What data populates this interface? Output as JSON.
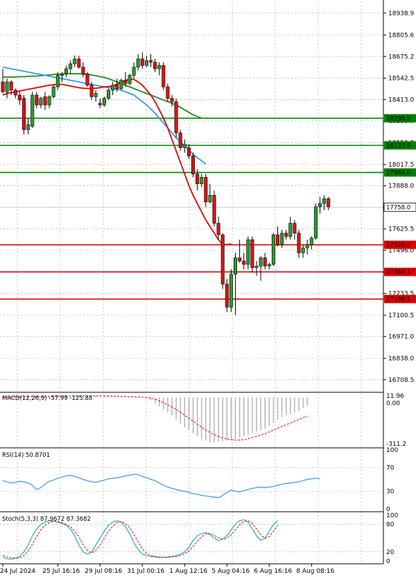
{
  "chart_data": {
    "type": "candlestick",
    "price_axis_ticks": [
      18938.9,
      18805.6,
      18675.2,
      18542.5,
      18413.0,
      18283.0,
      18150.0,
      18017.5,
      17888.0,
      17758.0,
      17625.5,
      17496.0,
      17363.0,
      17233.5,
      17100.5,
      16971.0,
      16838.0,
      16708.5
    ],
    "price_axis_range": [
      16640,
      19010
    ],
    "time_labels": [
      "24 Jul 2024",
      "25 Jul 16:16",
      "29 Jul 08:16",
      "31 Jul 00:16",
      "1 Aug 12:16",
      "5 Aug 04:16",
      "6 Aug 16:16",
      "8 Aug 08:16"
    ],
    "time_label_index": [
      0,
      13,
      23,
      33,
      43,
      53,
      63,
      73
    ],
    "candles": [
      {
        "o": 18520,
        "h": 18600,
        "l": 18450,
        "c": 18460
      },
      {
        "o": 18460,
        "h": 18540,
        "l": 18420,
        "c": 18520
      },
      {
        "o": 18520,
        "h": 18530,
        "l": 18440,
        "c": 18470
      },
      {
        "o": 18470,
        "h": 18480,
        "l": 18420,
        "c": 18440
      },
      {
        "o": 18440,
        "h": 18460,
        "l": 18380,
        "c": 18410
      },
      {
        "o": 18420,
        "h": 18440,
        "l": 18200,
        "c": 18230
      },
      {
        "o": 18230,
        "h": 18300,
        "l": 18200,
        "c": 18260
      },
      {
        "o": 18250,
        "h": 18460,
        "l": 18240,
        "c": 18440
      },
      {
        "o": 18440,
        "h": 18460,
        "l": 18360,
        "c": 18380
      },
      {
        "o": 18380,
        "h": 18430,
        "l": 18360,
        "c": 18420
      },
      {
        "o": 18430,
        "h": 18460,
        "l": 18350,
        "c": 18380
      },
      {
        "o": 18380,
        "h": 18440,
        "l": 18360,
        "c": 18430
      },
      {
        "o": 18430,
        "h": 18500,
        "l": 18420,
        "c": 18490
      },
      {
        "o": 18490,
        "h": 18580,
        "l": 18470,
        "c": 18560
      },
      {
        "o": 18560,
        "h": 18580,
        "l": 18520,
        "c": 18570
      },
      {
        "o": 18570,
        "h": 18620,
        "l": 18550,
        "c": 18600
      },
      {
        "o": 18600,
        "h": 18650,
        "l": 18570,
        "c": 18630
      },
      {
        "o": 18630,
        "h": 18680,
        "l": 18610,
        "c": 18660
      },
      {
        "o": 18660,
        "h": 18680,
        "l": 18600,
        "c": 18610
      },
      {
        "o": 18610,
        "h": 18640,
        "l": 18550,
        "c": 18570
      },
      {
        "o": 18570,
        "h": 18580,
        "l": 18490,
        "c": 18500
      },
      {
        "o": 18500,
        "h": 18520,
        "l": 18410,
        "c": 18430
      },
      {
        "o": 18430,
        "h": 18470,
        "l": 18400,
        "c": 18450
      },
      {
        "o": 18390,
        "h": 18420,
        "l": 18360,
        "c": 18380
      },
      {
        "o": 18380,
        "h": 18430,
        "l": 18370,
        "c": 18420
      },
      {
        "o": 18420,
        "h": 18480,
        "l": 18410,
        "c": 18470
      },
      {
        "o": 18470,
        "h": 18520,
        "l": 18440,
        "c": 18500
      },
      {
        "o": 18500,
        "h": 18540,
        "l": 18460,
        "c": 18480
      },
      {
        "o": 18480,
        "h": 18540,
        "l": 18470,
        "c": 18530
      },
      {
        "o": 18530,
        "h": 18580,
        "l": 18490,
        "c": 18510
      },
      {
        "o": 18510,
        "h": 18570,
        "l": 18500,
        "c": 18560
      },
      {
        "o": 18560,
        "h": 18640,
        "l": 18540,
        "c": 18610
      },
      {
        "o": 18610,
        "h": 18690,
        "l": 18590,
        "c": 18660
      },
      {
        "o": 18660,
        "h": 18700,
        "l": 18600,
        "c": 18620
      },
      {
        "o": 18620,
        "h": 18680,
        "l": 18610,
        "c": 18650
      },
      {
        "o": 18650,
        "h": 18690,
        "l": 18610,
        "c": 18640
      },
      {
        "o": 18640,
        "h": 18660,
        "l": 18580,
        "c": 18600
      },
      {
        "o": 18600,
        "h": 18640,
        "l": 18560,
        "c": 18620
      },
      {
        "o": 18620,
        "h": 18640,
        "l": 18470,
        "c": 18490
      },
      {
        "o": 18490,
        "h": 18510,
        "l": 18400,
        "c": 18420
      },
      {
        "o": 18420,
        "h": 18440,
        "l": 18370,
        "c": 18400
      },
      {
        "o": 18400,
        "h": 18420,
        "l": 18180,
        "c": 18210
      },
      {
        "o": 18210,
        "h": 18230,
        "l": 18100,
        "c": 18120
      },
      {
        "o": 18120,
        "h": 18170,
        "l": 18090,
        "c": 18140
      },
      {
        "o": 18120,
        "h": 18140,
        "l": 18050,
        "c": 18070
      },
      {
        "o": 18070,
        "h": 18090,
        "l": 17940,
        "c": 17960
      },
      {
        "o": 17960,
        "h": 17990,
        "l": 17860,
        "c": 17900
      },
      {
        "o": 17900,
        "h": 17960,
        "l": 17880,
        "c": 17940
      },
      {
        "o": 17940,
        "h": 17960,
        "l": 17760,
        "c": 17790
      },
      {
        "o": 17790,
        "h": 17900,
        "l": 17780,
        "c": 17830
      },
      {
        "o": 17830,
        "h": 17860,
        "l": 17640,
        "c": 17660
      },
      {
        "o": 17660,
        "h": 17700,
        "l": 17560,
        "c": 17590
      },
      {
        "o": 17590,
        "h": 17600,
        "l": 17260,
        "c": 17290
      },
      {
        "o": 17290,
        "h": 17320,
        "l": 17120,
        "c": 17150
      },
      {
        "o": 17150,
        "h": 17380,
        "l": 17120,
        "c": 17350
      },
      {
        "o": 17350,
        "h": 17480,
        "l": 17100,
        "c": 17450
      },
      {
        "o": 17450,
        "h": 17560,
        "l": 17420,
        "c": 17430
      },
      {
        "o": 17430,
        "h": 17480,
        "l": 17380,
        "c": 17410
      },
      {
        "o": 17410,
        "h": 17580,
        "l": 17380,
        "c": 17560
      },
      {
        "o": 17560,
        "h": 17580,
        "l": 17360,
        "c": 17390
      },
      {
        "o": 17390,
        "h": 17430,
        "l": 17340,
        "c": 17400
      },
      {
        "o": 17400,
        "h": 17460,
        "l": 17310,
        "c": 17450
      },
      {
        "o": 17450,
        "h": 17480,
        "l": 17380,
        "c": 17400
      },
      {
        "o": 17400,
        "h": 17420,
        "l": 17380,
        "c": 17410
      },
      {
        "o": 17410,
        "h": 17600,
        "l": 17400,
        "c": 17590
      },
      {
        "o": 17590,
        "h": 17640,
        "l": 17520,
        "c": 17530
      },
      {
        "o": 17530,
        "h": 17620,
        "l": 17510,
        "c": 17600
      },
      {
        "o": 17600,
        "h": 17620,
        "l": 17560,
        "c": 17580
      },
      {
        "o": 17580,
        "h": 17700,
        "l": 17560,
        "c": 17660
      },
      {
        "o": 17660,
        "h": 17680,
        "l": 17560,
        "c": 17600
      },
      {
        "o": 17600,
        "h": 17620,
        "l": 17450,
        "c": 17480
      },
      {
        "o": 17480,
        "h": 17530,
        "l": 17450,
        "c": 17510
      },
      {
        "o": 17510,
        "h": 17560,
        "l": 17470,
        "c": 17530
      },
      {
        "o": 17530,
        "h": 17580,
        "l": 17500,
        "c": 17570
      },
      {
        "o": 17570,
        "h": 17780,
        "l": 17560,
        "c": 17760
      },
      {
        "o": 17760,
        "h": 17820,
        "l": 17720,
        "c": 17780
      },
      {
        "o": 17780,
        "h": 17830,
        "l": 17740,
        "c": 17810
      },
      {
        "o": 17810,
        "h": 17820,
        "l": 17740,
        "c": 17760
      }
    ],
    "ma_red": [
      18440,
      18450,
      18455,
      18460,
      18465,
      18470,
      18475,
      18480,
      18485,
      18490,
      18495,
      18500,
      18502,
      18505,
      18505,
      18500,
      18495,
      18490,
      18485,
      18482,
      18480,
      18480,
      18482,
      18485,
      18490,
      18492,
      18495,
      18505,
      18515,
      18530,
      18535,
      18535,
      18520,
      18500,
      18470,
      18440,
      18400,
      18350,
      18300,
      18240,
      18170,
      18100,
      18030,
      17960,
      17890,
      17830,
      17780,
      17730,
      17680,
      17640,
      17600,
      17560,
      17530,
      17530,
      17535
    ],
    "ma_red_start": 0,
    "ma_blue": [
      18610,
      18605,
      18600,
      18595,
      18590,
      18585,
      18580,
      18575,
      18570,
      18565,
      18560,
      18555,
      18550,
      18545,
      18540,
      18535,
      18530,
      18525,
      18520,
      18515,
      18510,
      18505,
      18500,
      18495,
      18490,
      18485,
      18480,
      18475,
      18470,
      18460,
      18450,
      18440,
      18420,
      18400,
      18380,
      18355,
      18330,
      18300,
      18270,
      18240,
      18210,
      18180,
      18155,
      18130,
      18105,
      18080,
      18060,
      18040,
      18020
    ],
    "ma_blue_start": 0,
    "ma_green": [
      18550,
      18550,
      18550,
      18550,
      18552,
      18552,
      18554,
      18555,
      18556,
      18558,
      18560,
      18562,
      18565,
      18567,
      18568,
      18570,
      18570,
      18570,
      18570,
      18568,
      18565,
      18562,
      18558,
      18553,
      18548,
      18540,
      18530,
      18520,
      18510,
      18500,
      18490,
      18480,
      18470,
      18460,
      18450,
      18440,
      18430,
      18420,
      18410,
      18400,
      18390,
      18380,
      18365,
      18350,
      18335,
      18320,
      18310,
      18300
    ],
    "ma_green_start": 0,
    "hlines": [
      {
        "value": 18298.9,
        "label": "18298.9",
        "color": "#008000"
      },
      {
        "value": 18133.9,
        "label": "18133.9",
        "color": "#008000"
      },
      {
        "value": 17969.0,
        "label": "17969.0",
        "color": "#008000"
      },
      {
        "value": 17529.0,
        "label": "17529.0",
        "color": "#dd0000"
      },
      {
        "value": 17364.1,
        "label": "17364.1",
        "color": "#dd0000"
      },
      {
        "value": 17199.1,
        "label": "17199.1",
        "color": "#dd0000"
      }
    ],
    "current_price": {
      "value": 17758.0,
      "label": "17758.0"
    },
    "macd": {
      "label": "MACD(12,26,9) -57.99 -125.88",
      "ticks": [
        "11.96",
        "0.00",
        "-311.2"
      ],
      "range": [
        -330,
        30
      ],
      "bars": [
        2,
        3,
        4,
        5,
        5,
        6,
        6,
        7,
        7,
        8,
        8,
        9,
        9,
        10,
        10,
        11,
        11,
        11,
        12,
        12,
        12,
        11,
        11,
        10,
        9,
        8,
        7,
        6,
        5,
        4,
        3,
        2,
        1,
        0,
        -5,
        -20,
        -40,
        -60,
        -80,
        -100,
        -120,
        -150,
        -180,
        -200,
        -220,
        -240,
        -260,
        -280,
        -290,
        -300,
        -305,
        -300,
        -295,
        -290,
        -285,
        -280,
        -270,
        -260,
        -250,
        -240,
        -230,
        -220,
        -210,
        -190,
        -170,
        -150,
        -130,
        -120,
        -110,
        -100,
        -90,
        -70,
        -58
      ],
      "signal": [
        2,
        2,
        3,
        3,
        4,
        4,
        5,
        5,
        6,
        6,
        7,
        7,
        8,
        8,
        9,
        9,
        10,
        10,
        11,
        11,
        11,
        11,
        11,
        11,
        10,
        10,
        9,
        8,
        7,
        6,
        5,
        4,
        3,
        2,
        0,
        -5,
        -12,
        -22,
        -35,
        -50,
        -65,
        -80,
        -100,
        -120,
        -140,
        -160,
        -180,
        -200,
        -220,
        -235,
        -250,
        -262,
        -272,
        -280,
        -285,
        -287,
        -287,
        -284,
        -278,
        -270,
        -262,
        -254,
        -244,
        -232,
        -220,
        -208,
        -195,
        -184,
        -172,
        -160,
        -148,
        -136,
        -126
      ]
    },
    "rsi": {
      "label": "RSI(14) 50.8701",
      "ticks": [
        "100",
        "70",
        "30",
        "0"
      ],
      "range": [
        0,
        100
      ],
      "values": [
        48,
        46,
        44,
        45,
        47,
        46,
        44,
        40,
        33,
        36,
        42,
        47,
        49,
        52,
        54,
        56,
        57,
        55,
        53,
        50,
        48,
        46,
        45,
        47,
        49,
        51,
        52,
        53,
        54,
        56,
        57,
        59,
        58,
        55,
        53,
        50,
        48,
        44,
        40,
        37,
        35,
        33,
        31,
        30,
        28,
        26,
        25,
        23,
        22,
        21,
        20,
        19,
        23,
        28,
        32,
        30,
        29,
        31,
        33,
        35,
        36,
        37,
        36,
        37,
        38,
        40,
        42,
        43,
        44,
        45,
        46,
        48,
        50,
        51,
        52,
        51
      ]
    },
    "stoch": {
      "label": "Stoch(5,3,3) 87.9672 87.3682",
      "ticks": [
        "100",
        "80",
        "20",
        "0"
      ],
      "range": [
        0,
        100
      ],
      "k": [
        8,
        5,
        4,
        6,
        10,
        20,
        35,
        55,
        70,
        80,
        85,
        88,
        87,
        85,
        82,
        78,
        70,
        55,
        35,
        20,
        15,
        20,
        35,
        50,
        65,
        78,
        85,
        88,
        85,
        75,
        60,
        40,
        25,
        15,
        12,
        10,
        9,
        8,
        8,
        9,
        10,
        12,
        15,
        20,
        30,
        45,
        55,
        60,
        62,
        58,
        50,
        45,
        48,
        55,
        68,
        80,
        88,
        90,
        85,
        70,
        55,
        45,
        50,
        65,
        80,
        88
      ],
      "d": [
        12,
        9,
        7,
        6,
        7,
        12,
        22,
        37,
        53,
        68,
        78,
        84,
        87,
        86,
        84,
        80,
        75,
        65,
        53,
        36,
        23,
        18,
        23,
        35,
        50,
        65,
        76,
        84,
        86,
        82,
        73,
        58,
        42,
        27,
        17,
        12,
        10,
        9,
        8,
        8,
        9,
        10,
        12,
        16,
        22,
        32,
        43,
        53,
        59,
        60,
        56,
        51,
        47,
        50,
        57,
        68,
        79,
        86,
        88,
        82,
        70,
        57,
        50,
        53,
        65,
        78
      ]
    }
  }
}
